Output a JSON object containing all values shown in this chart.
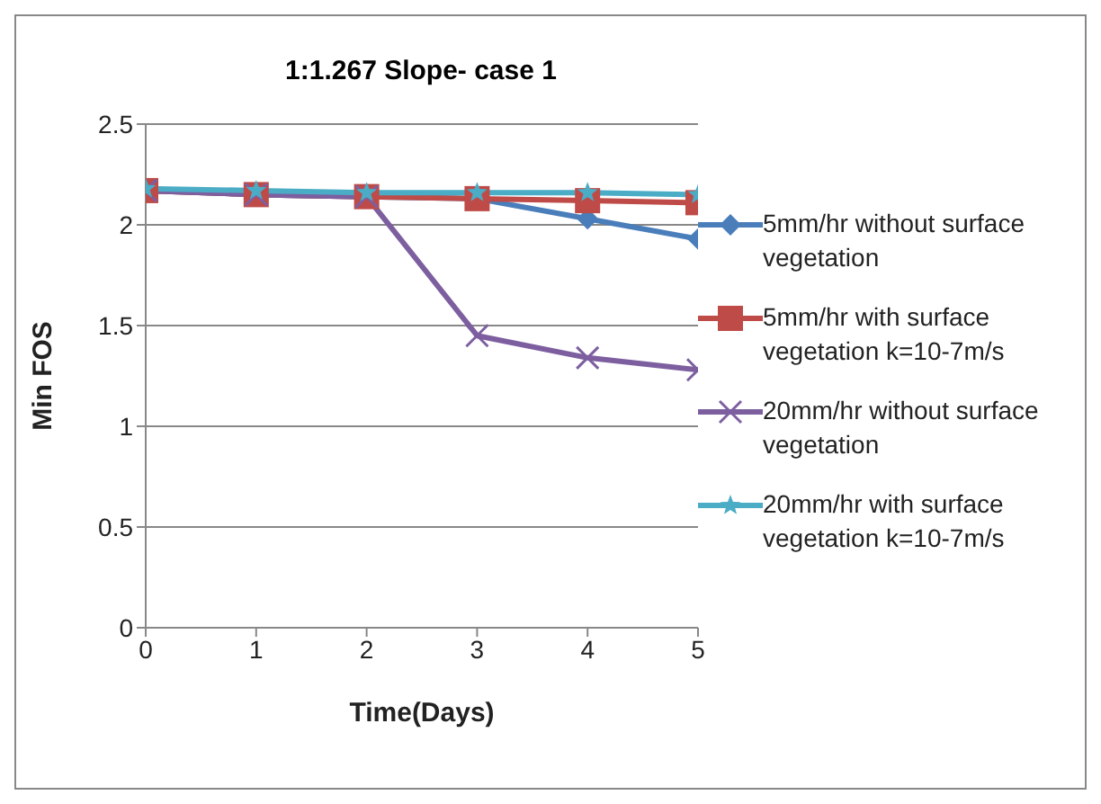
{
  "chart_data": {
    "type": "line",
    "title": "1:1.267 Slope- case 1",
    "xlabel": "Time(Days)",
    "ylabel": "Min FOS",
    "x": [
      0,
      1,
      2,
      3,
      4,
      5
    ],
    "xlim": [
      0,
      5
    ],
    "xticks": [
      0,
      1,
      2,
      3,
      4,
      5
    ],
    "ylim": [
      0,
      2.5
    ],
    "yticks": [
      0,
      0.5,
      1,
      1.5,
      2,
      2.5
    ],
    "grid": "y",
    "legend": "right",
    "series": [
      {
        "name": "5mm/hr without surface vegetation",
        "color": "#4a7ebb",
        "marker": "diamond",
        "values": [
          2.17,
          2.15,
          2.14,
          2.13,
          2.03,
          1.93
        ]
      },
      {
        "name": "5mm/hr with surface vegetation k=10-7m/s",
        "color": "#be4b48",
        "marker": "square",
        "values": [
          2.17,
          2.15,
          2.14,
          2.13,
          2.12,
          2.11
        ]
      },
      {
        "name": "20mm/hr without surface vegetation",
        "color": "#7d5fa0",
        "marker": "cross",
        "values": [
          2.17,
          2.15,
          2.14,
          1.45,
          1.34,
          1.28
        ]
      },
      {
        "name": "20mm/hr with surface vegetation k=10-7m/s",
        "color": "#4bacc6",
        "marker": "star",
        "values": [
          2.18,
          2.17,
          2.16,
          2.16,
          2.16,
          2.15
        ]
      }
    ]
  }
}
